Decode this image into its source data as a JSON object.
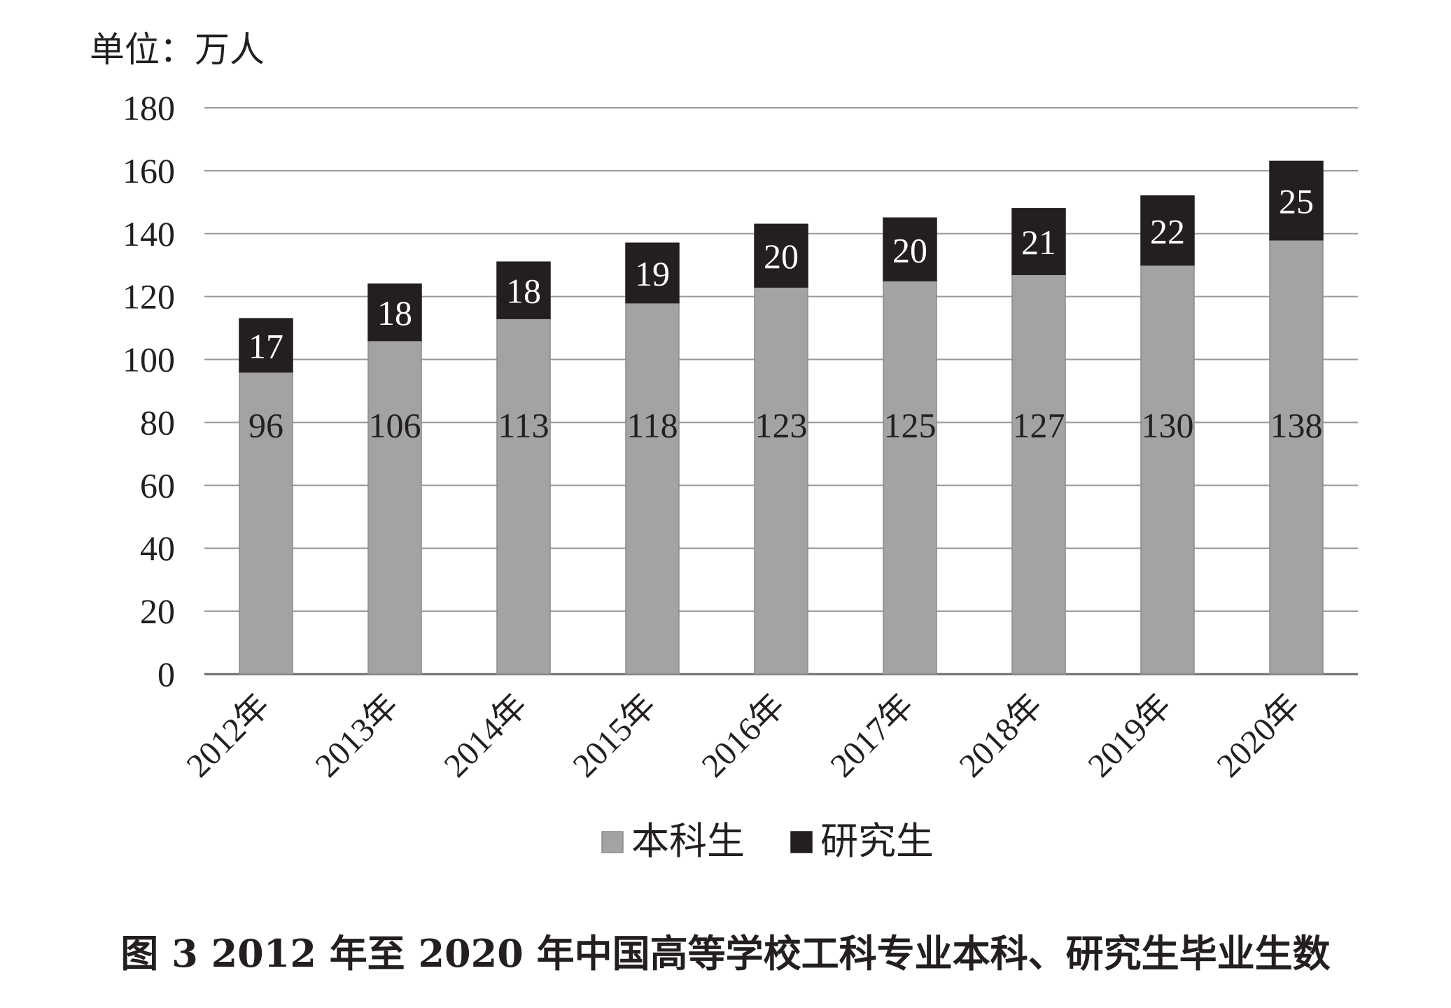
{
  "caption": "图 3 2012 年至 2020 年中国高等学校工科专业本科、研究生毕业生数",
  "chart_data": {
    "type": "bar",
    "stacked": true,
    "title": "",
    "unit_label": "单位：万人",
    "categories": [
      "2012年",
      "2013年",
      "2014年",
      "2015年",
      "2016年",
      "2017年",
      "2018年",
      "2019年",
      "2020年"
    ],
    "series": [
      {
        "name": "本科生",
        "color": "#a3a3a3",
        "values": [
          96,
          106,
          113,
          118,
          123,
          125,
          127,
          130,
          138
        ]
      },
      {
        "name": "研究生",
        "color": "#231f20",
        "values": [
          17,
          18,
          18,
          19,
          20,
          20,
          21,
          22,
          25
        ]
      }
    ],
    "yticks": [
      "0",
      "20",
      "40",
      "60",
      "80",
      "100",
      "120",
      "140",
      "160",
      "180"
    ],
    "ylim": [
      0,
      180
    ],
    "grid": true,
    "legend_position": "bottom-center"
  }
}
